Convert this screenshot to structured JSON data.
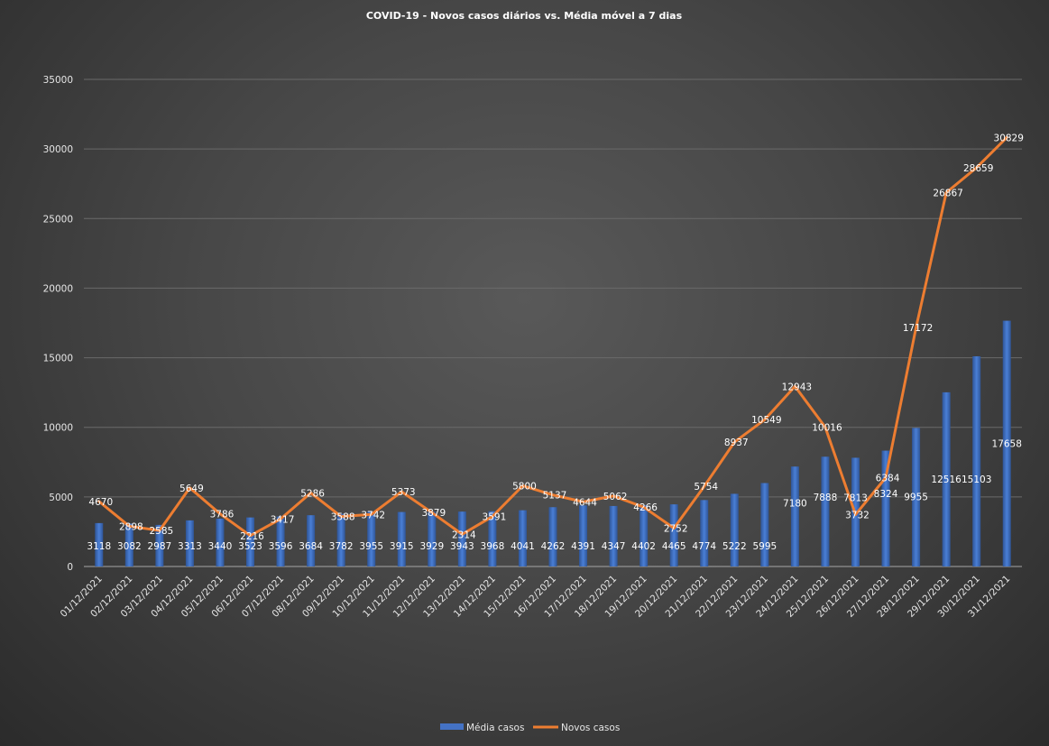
{
  "chart_data": {
    "type": "bar+line",
    "title": "COVID-19  - Novos casos diários  vs. Média  móvel  a 7 dias",
    "categories": [
      "01/12/2021",
      "02/12/2021",
      "03/12/2021",
      "04/12/2021",
      "05/12/2021",
      "06/12/2021",
      "07/12/2021",
      "08/12/2021",
      "09/12/2021",
      "10/12/2021",
      "11/12/2021",
      "12/12/2021",
      "13/12/2021",
      "14/12/2021",
      "15/12/2021",
      "16/12/2021",
      "17/12/2021",
      "18/12/2021",
      "19/12/2021",
      "20/12/2021",
      "21/12/2021",
      "22/12/2021",
      "23/12/2021",
      "24/12/2021",
      "25/12/2021",
      "26/12/2021",
      "27/12/2021",
      "28/12/2021",
      "29/12/2021",
      "30/12/2021",
      "31/12/2021"
    ],
    "series": [
      {
        "name": "Média casos",
        "type": "bar",
        "color": "#4472c4",
        "values": [
          3118,
          3082,
          2987,
          3313,
          3440,
          3523,
          3596,
          3684,
          3782,
          3955,
          3915,
          3929,
          3943,
          3968,
          4041,
          4262,
          4391,
          4347,
          4402,
          4465,
          4774,
          5222,
          5995,
          7180,
          7888,
          7813,
          8324,
          9955,
          12516,
          15103,
          17658
        ]
      },
      {
        "name": "Novos casos",
        "type": "line",
        "color": "#ed7d31",
        "values": [
          4670,
          2898,
          2585,
          5649,
          3786,
          2216,
          3417,
          5286,
          3588,
          3742,
          5373,
          3879,
          2314,
          3591,
          5800,
          5137,
          4644,
          5062,
          4266,
          2752,
          5754,
          8937,
          10549,
          12943,
          10016,
          3732,
          6384,
          17172,
          26867,
          28659,
          30829
        ]
      }
    ],
    "ylim": [
      0,
      35000
    ],
    "yticks": [
      0,
      5000,
      10000,
      15000,
      20000,
      25000,
      30000,
      35000
    ],
    "grid": true,
    "legend": "bottom"
  }
}
